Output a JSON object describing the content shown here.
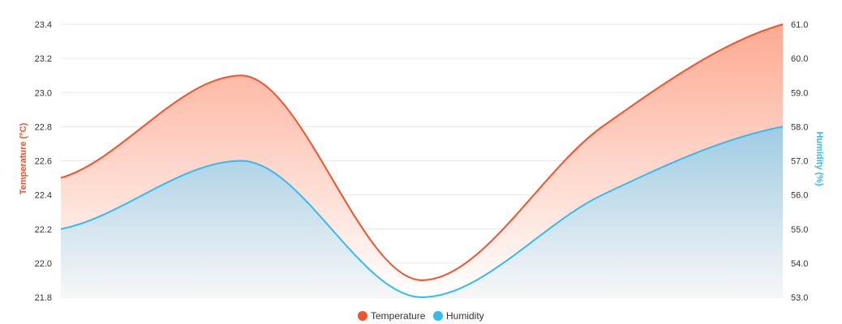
{
  "chart_data": {
    "type": "area",
    "x": [
      0,
      1,
      2,
      3,
      4
    ],
    "series": [
      {
        "name": "Temperature",
        "axis": "left",
        "values": [
          22.5,
          23.1,
          21.9,
          22.8,
          23.4
        ],
        "color": "#f2532b",
        "fill_top": "#fdaa92",
        "fill_bottom": "#ffffff"
      },
      {
        "name": "Humidity",
        "axis": "right",
        "values": [
          55.0,
          57.0,
          53.0,
          56.0,
          58.0
        ],
        "color": "#33bbf0",
        "fill_top": "#9fcbe3",
        "fill_bottom": "#f7f7f7"
      }
    ],
    "left_axis": {
      "label": "Temperature (°C)",
      "ylim": [
        21.8,
        23.4
      ],
      "ticks": [
        "23.4",
        "23.2",
        "23.0",
        "22.8",
        "22.6",
        "22.4",
        "22.2",
        "22.0",
        "21.8"
      ],
      "color": "#f2532b"
    },
    "right_axis": {
      "label": "Humidity (%)",
      "ylim": [
        53.0,
        61.0
      ],
      "ticks": [
        "61.0",
        "60.0",
        "59.0",
        "58.0",
        "57.0",
        "56.0",
        "55.0",
        "54.0",
        "53.0"
      ],
      "color": "#33bbf0"
    },
    "grid": true,
    "legend": "bottom-center",
    "legend_items": [
      {
        "label": "Temperature",
        "color": "#f2532b"
      },
      {
        "label": "Humidity",
        "color": "#33bbf0"
      }
    ]
  }
}
